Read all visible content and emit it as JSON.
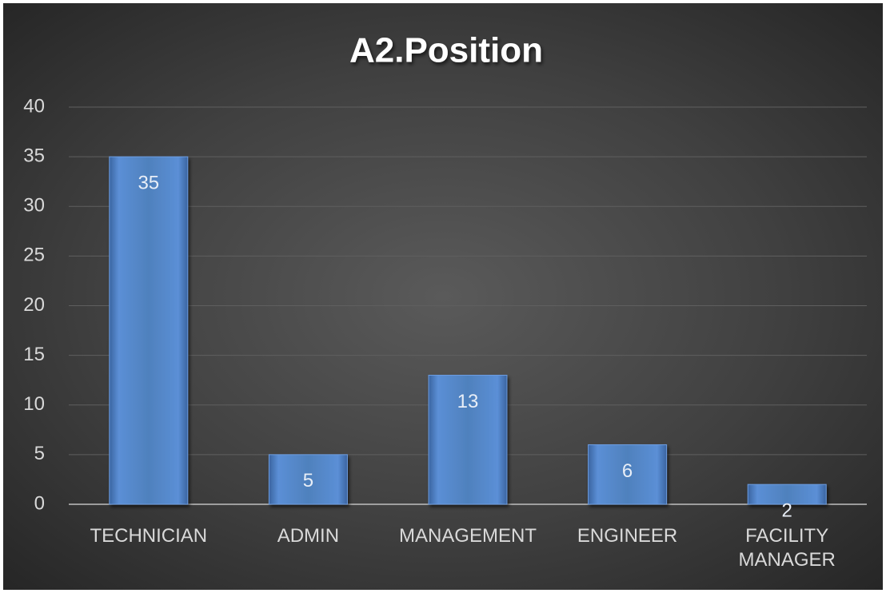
{
  "chart_data": {
    "type": "bar",
    "title": "A2.Position",
    "categories": [
      "TECHNICIAN",
      "ADMIN",
      "MANAGEMENT",
      "ENGINEER",
      "FACILITY MANAGER"
    ],
    "values": [
      35,
      5,
      13,
      6,
      2
    ],
    "color": "#4f81bd",
    "ylim": [
      0,
      40
    ],
    "yticks": [
      0,
      5,
      10,
      15,
      20,
      25,
      30,
      35,
      40
    ],
    "grid": true
  }
}
